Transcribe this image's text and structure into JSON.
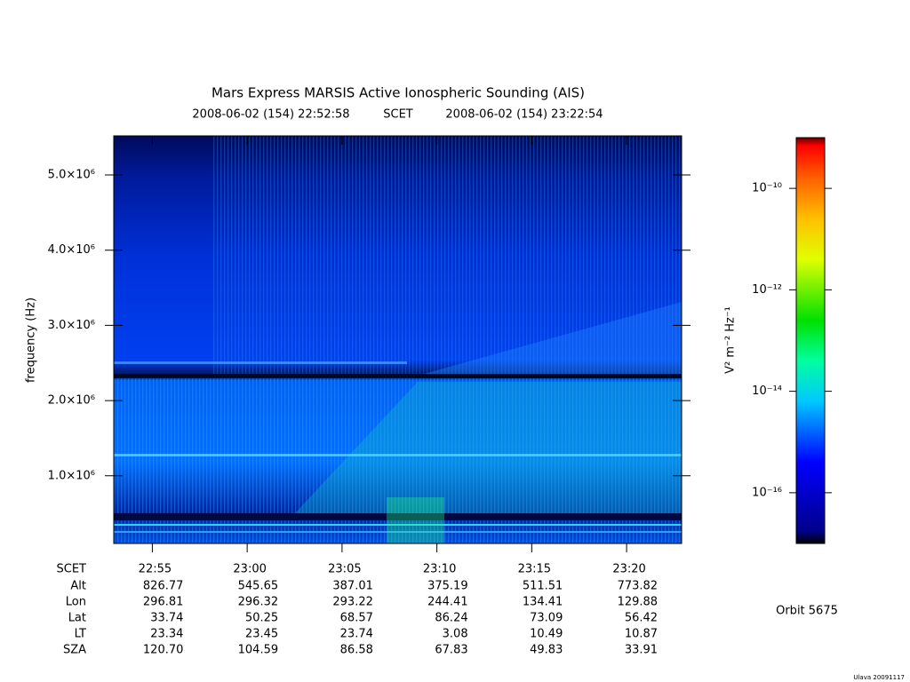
{
  "chart_data": {
    "type": "spectrogram",
    "title": "Mars Express MARSIS Active Ionospheric Sounding (AIS)",
    "subtitle": {
      "start": "2008-06-02 (154) 22:52:58",
      "system": "SCET",
      "end": "2008-06-02 (154) 23:22:54"
    },
    "ylabel": "frequency (Hz)",
    "ylim": [
      100000,
      5520000
    ],
    "yticks": [
      {
        "value": 1000000,
        "label": "1.0×10⁶"
      },
      {
        "value": 2000000,
        "label": "2.0×10⁶"
      },
      {
        "value": 3000000,
        "label": "3.0×10⁶"
      },
      {
        "value": 4000000,
        "label": "4.0×10⁶"
      },
      {
        "value": 5000000,
        "label": "5.0×10⁶"
      }
    ],
    "xlim": [
      "2008-06-02T22:52:58",
      "2008-06-02T23:22:54"
    ],
    "xticks": [
      {
        "value": "2008-06-02T22:55:00",
        "label": "22:55"
      },
      {
        "value": "2008-06-02T23:00:00",
        "label": "23:00"
      },
      {
        "value": "2008-06-02T23:05:00",
        "label": "23:05"
      },
      {
        "value": "2008-06-02T23:10:00",
        "label": "23:10"
      },
      {
        "value": "2008-06-02T23:15:00",
        "label": "23:15"
      },
      {
        "value": "2008-06-02T23:20:00",
        "label": "23:20"
      }
    ],
    "colorbar": {
      "label": "V² m⁻² Hz⁻¹",
      "log": true,
      "lim": [
        1e-17,
        1e-09
      ],
      "ticks": [
        {
          "value": 1e-16,
          "label": "10⁻¹⁶"
        },
        {
          "value": 1e-14,
          "label": "10⁻¹⁴"
        },
        {
          "value": 1e-12,
          "label": "10⁻¹²"
        },
        {
          "value": 1e-10,
          "label": "10⁻¹⁰"
        }
      ]
    },
    "ephemeris": {
      "header": "SCET",
      "rows": [
        {
          "label": "Alt",
          "values": [
            "826.77",
            "545.65",
            "387.01",
            "375.19",
            "511.51",
            "773.82"
          ]
        },
        {
          "label": "Lon",
          "values": [
            "296.81",
            "296.32",
            "293.22",
            "244.41",
            "134.41",
            "129.88"
          ]
        },
        {
          "label": "Lat",
          "values": [
            "33.74",
            "50.25",
            "68.57",
            "86.24",
            "73.09",
            "56.42"
          ]
        },
        {
          "label": "LT",
          "values": [
            "23.34",
            "23.45",
            "23.74",
            "3.08",
            "10.49",
            "10.87"
          ]
        },
        {
          "label": "SZA",
          "values": [
            "120.70",
            "104.59",
            "86.58",
            "67.83",
            "49.83",
            "33.91"
          ]
        }
      ]
    },
    "orbit": "Orbit 5675",
    "credit": "Ulava 20091117"
  }
}
